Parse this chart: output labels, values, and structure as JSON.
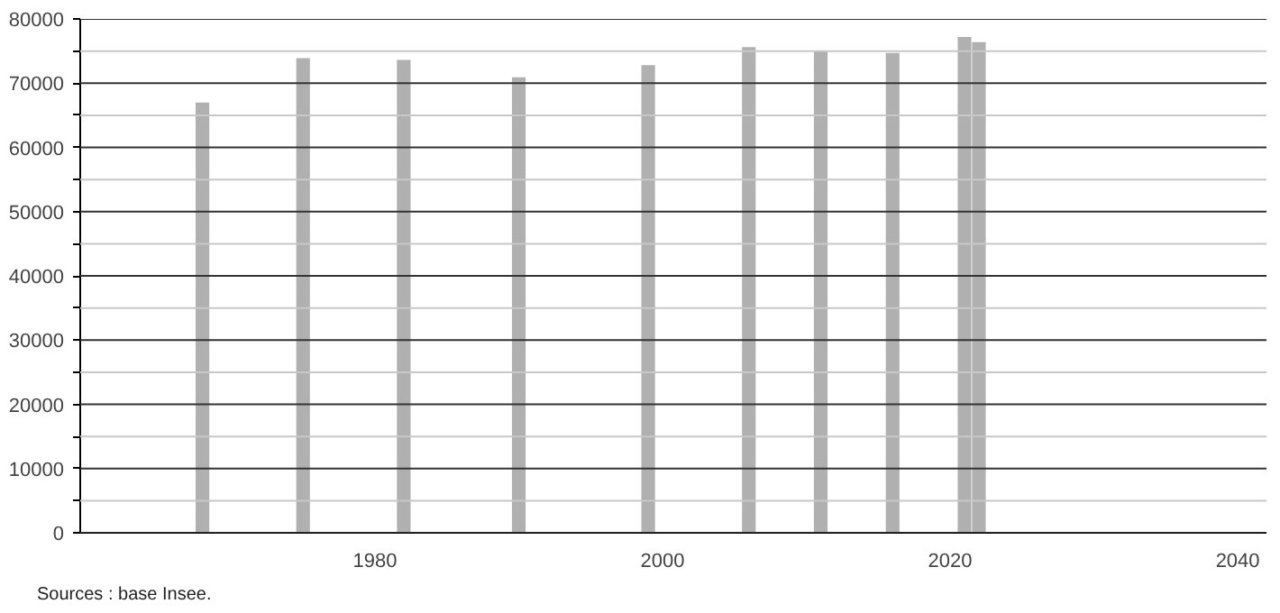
{
  "chart_data": {
    "type": "bar",
    "x": [
      1968,
      1975,
      1982,
      1990,
      1999,
      2006,
      2011,
      2016,
      2021,
      2022
    ],
    "values": [
      67000,
      73900,
      73600,
      70900,
      72800,
      75600,
      75000,
      74700,
      77200,
      76400
    ],
    "color": "#b0b0b0",
    "xlim": [
      1959.5,
      2042
    ],
    "xticks": [
      1980,
      2000,
      2020,
      2040
    ],
    "ylim": [
      0,
      80000
    ],
    "yticks": [
      0,
      {
        "value": 5000,
        "label": null
      },
      10000,
      {
        "value": 15000,
        "label": null
      },
      20000,
      {
        "value": 25000,
        "label": null
      },
      30000,
      {
        "value": 35000,
        "label": null
      },
      40000,
      {
        "value": 45000,
        "label": null
      },
      50000,
      {
        "value": 55000,
        "label": null
      },
      60000,
      {
        "value": 65000,
        "label": null
      },
      70000,
      {
        "value": 75000,
        "label": null
      },
      80000
    ],
    "grid": "y",
    "annotations": [
      "Sources : base Insee."
    ]
  }
}
